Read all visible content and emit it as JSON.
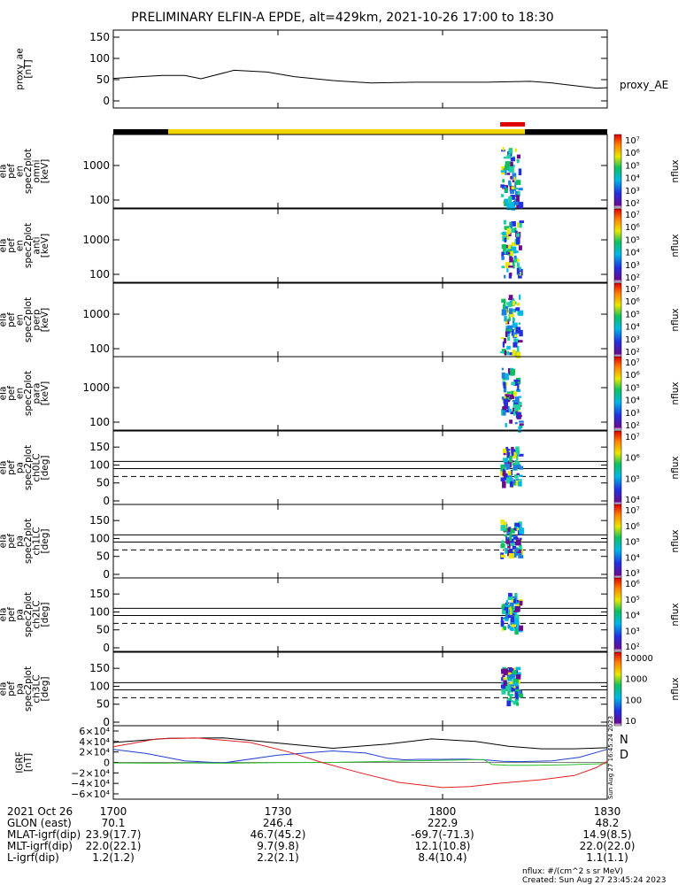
{
  "title": "PRELIMINARY ELFIN-A EPDE, alt=429km, 2021-10-26 17:00 to 18:30",
  "colors": {
    "frame": "#000000",
    "orbit_black": "#000000",
    "orbit_yellow": "#f2d200",
    "science_red": "#e00000",
    "bx": "#1f3fd0",
    "by": "#2fc02f",
    "bz": "#e02020",
    "btot": "#000000"
  },
  "proxy_panel": {
    "ylabel_lines": [
      "proxy_ae",
      "[nT]"
    ],
    "yticks": [
      "150",
      "100",
      "50",
      "0"
    ],
    "ylim": [
      0,
      150
    ],
    "legend": "proxy_AE"
  },
  "spec_panels": [
    {
      "id": "omni",
      "ylabel_lines": [
        "ela",
        "pef",
        "en",
        "spec2plot",
        "omni",
        "[keV]"
      ],
      "yticks": [
        "1000",
        "100"
      ],
      "cbar_label": "nflux",
      "cbar_ticks": [
        "10⁷",
        "10⁶",
        "10⁵",
        "10⁴",
        "10³",
        "10²"
      ]
    },
    {
      "id": "anti",
      "ylabel_lines": [
        "ela",
        "pef",
        "en",
        "spec2plot",
        "anti",
        "[keV]"
      ],
      "yticks": [
        "1000",
        "100"
      ],
      "cbar_label": "nflux",
      "cbar_ticks": [
        "10⁷",
        "10⁶",
        "10⁵",
        "10⁴",
        "10³",
        "10²"
      ]
    },
    {
      "id": "perp",
      "ylabel_lines": [
        "ela",
        "pef",
        "en",
        "spec2plot",
        "perp",
        "[keV]"
      ],
      "yticks": [
        "1000",
        "100"
      ],
      "cbar_label": "nflux",
      "cbar_ticks": [
        "10⁷",
        "10⁶",
        "10⁵",
        "10⁴",
        "10³",
        "10²"
      ]
    },
    {
      "id": "para",
      "ylabel_lines": [
        "ela",
        "pef",
        "en",
        "spec2plot",
        "para",
        "[keV]"
      ],
      "yticks": [
        "1000",
        "100"
      ],
      "cbar_label": "nflux",
      "cbar_ticks": [
        "10⁷",
        "10⁶",
        "10⁵",
        "10⁴",
        "10³",
        "10²"
      ]
    }
  ],
  "pa_panels": [
    {
      "id": "ch0LC",
      "ylabel_lines": [
        "ela",
        "pef",
        "pa",
        "spec2plot",
        "ch0LC",
        "[deg]"
      ],
      "yticks": [
        "150",
        "100",
        "50",
        "0"
      ],
      "cbar_label": "nflux",
      "cbar_ticks": [
        "10⁷",
        "10⁶",
        "10⁵",
        "10⁴"
      ]
    },
    {
      "id": "ch1LC",
      "ylabel_lines": [
        "ela",
        "pef",
        "pa",
        "spec2plot",
        "ch1LC",
        "[deg]"
      ],
      "yticks": [
        "150",
        "100",
        "50",
        "0"
      ],
      "cbar_label": "nflux",
      "cbar_ticks": [
        "10⁷",
        "10⁶",
        "10⁵",
        "10⁴",
        "10³"
      ]
    },
    {
      "id": "ch2LC",
      "ylabel_lines": [
        "ela",
        "pef",
        "pa",
        "spec2plot",
        "ch2LC",
        "[deg]"
      ],
      "yticks": [
        "150",
        "100",
        "50",
        "0"
      ],
      "cbar_label": "nflux",
      "cbar_ticks": [
        "10⁶",
        "10⁵",
        "10⁴",
        "10³",
        "10²"
      ]
    },
    {
      "id": "ch3LC",
      "ylabel_lines": [
        "ela",
        "pef",
        "pa",
        "spec2plot",
        "ch3LC",
        "[deg]"
      ],
      "yticks": [
        "150",
        "100",
        "50",
        "0"
      ],
      "cbar_label": "nflux",
      "cbar_ticks": [
        "10000",
        "1000",
        "100",
        "10"
      ]
    }
  ],
  "igrf_panel": {
    "ylabel_lines": [
      "IGRF",
      "[nT]"
    ],
    "yticks": [
      "6×10⁴",
      "4×10⁴",
      "2×10⁴",
      "0",
      "−2×10⁴",
      "−4×10⁴",
      "−6×10⁴"
    ],
    "ylim": [
      -60000,
      60000
    ],
    "legend": [
      "N",
      "D"
    ],
    "side_stamp": "Sun Aug 27 16:45:24 2023"
  },
  "xaxis": {
    "ticks": [
      "1700",
      "1730",
      "1800",
      "1830"
    ],
    "tick_minutes": [
      0,
      30,
      60,
      90
    ]
  },
  "info_rows": [
    {
      "label": "2021 Oct 26",
      "values": [
        "1700",
        "1730",
        "1800",
        "1830"
      ]
    },
    {
      "label": "GLON (east)",
      "values": [
        "70.1",
        "246.4",
        "222.9",
        "48.2"
      ]
    },
    {
      "label": "MLAT-igrf(dip)",
      "values": [
        "23.9(17.7)",
        "46.7(45.2)",
        "-69.7(-71.3)",
        "14.9(8.5)"
      ]
    },
    {
      "label": "MLT-igrf(dip)",
      "values": [
        "22.0(22.1)",
        "9.7(9.8)",
        "12.1(10.8)",
        "22.0(22.0)"
      ]
    },
    {
      "label": "L-igrf(dip)",
      "values": [
        "1.2(1.2)",
        "2.2(2.1)",
        "8.4(10.4)",
        "1.1(1.1)"
      ]
    }
  ],
  "footer": {
    "units": "nflux: #/(cm^2 s sr MeV)",
    "created": "Created: Sun Aug 27 23:45:24 2023"
  },
  "chart_data": {
    "type": "line",
    "x_unit": "minutes after 17:00 UT",
    "proxy_ae": {
      "x": [
        0,
        5,
        9,
        13,
        16,
        22,
        28,
        33,
        40,
        47,
        55,
        62,
        68,
        72,
        76,
        80,
        84,
        88,
        90
      ],
      "y": [
        53,
        57,
        60,
        60,
        52,
        72,
        68,
        57,
        48,
        42,
        44,
        44,
        44,
        45,
        46,
        42,
        36,
        30,
        31
      ]
    },
    "orbit_bar": [
      {
        "from": 0,
        "to": 10,
        "color": "#000000"
      },
      {
        "from": 10,
        "to": 75,
        "color": "#f2d200"
      },
      {
        "from": 75,
        "to": 90,
        "color": "#000000"
      }
    ],
    "science_zone": {
      "from": 70.5,
      "to": 75
    },
    "igrf": {
      "Bx": {
        "x": [
          0,
          6,
          13,
          20,
          30,
          40,
          46,
          50,
          53,
          56,
          60,
          64,
          68,
          71,
          74,
          80,
          85,
          90
        ],
        "y": [
          25000,
          17000,
          3000,
          -1000,
          14000,
          22000,
          18000,
          8000,
          5000,
          6000,
          6000,
          6500,
          4500,
          2000,
          1500,
          3000,
          10000,
          25000
        ]
      },
      "By": {
        "x": [
          0,
          8,
          14,
          20,
          30,
          40,
          50,
          60,
          65,
          67.5,
          69,
          72,
          76,
          82,
          90
        ],
        "y": [
          -1000,
          -1500,
          -1000,
          -1500,
          -500,
          0,
          2000,
          4000,
          5000,
          5500,
          -4000,
          -5500,
          -5500,
          -4500,
          -2000
        ]
      },
      "Bz": {
        "x": [
          0,
          8,
          15,
          25,
          32,
          38,
          45,
          52,
          60,
          65,
          70,
          78,
          84,
          88,
          90
        ],
        "y": [
          30000,
          45000,
          47000,
          38000,
          20000,
          0,
          -20000,
          -38000,
          -48000,
          -46000,
          -40000,
          -33000,
          -25000,
          -10000,
          2000
        ]
      },
      "Btot": {
        "x": [
          0,
          10,
          20,
          30,
          40,
          50,
          58,
          66,
          72,
          78,
          84,
          90
        ],
        "y": [
          38000,
          46000,
          47000,
          37000,
          27000,
          35000,
          45000,
          40000,
          31000,
          26000,
          26000,
          28000
        ]
      }
    },
    "spectrogram_activity": {
      "start_minute": 70.5,
      "end_minute": 74
    },
    "pitch_angle_reference_lines": {
      "solid": [
        110,
        90
      ],
      "dashed": [
        68
      ]
    }
  }
}
